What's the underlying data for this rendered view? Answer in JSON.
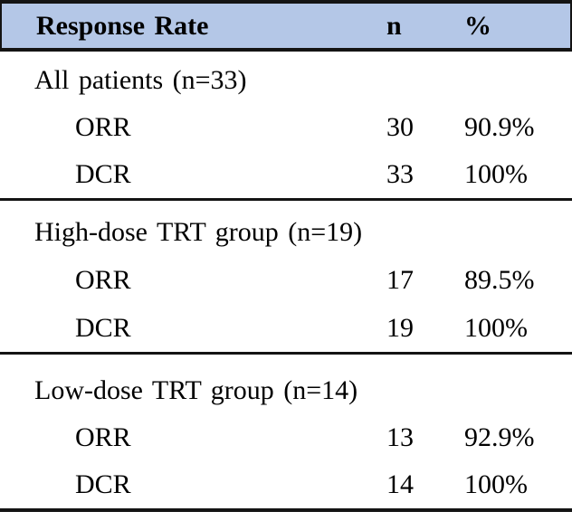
{
  "table": {
    "header": {
      "col1": "Response Rate",
      "col2": "n",
      "col3": "%"
    },
    "sections": [
      {
        "label": "All patients (n=33)",
        "rows": [
          {
            "metric": "ORR",
            "n": "30",
            "pct": "90.9%"
          },
          {
            "metric": "DCR",
            "n": "33",
            "pct": "100%"
          }
        ]
      },
      {
        "label": "High-dose TRT group (n=19)",
        "rows": [
          {
            "metric": "ORR",
            "n": "17",
            "pct": "89.5%"
          },
          {
            "metric": "DCR",
            "n": "19",
            "pct": "100%"
          }
        ]
      },
      {
        "label": "Low-dose TRT group (n=14)",
        "rows": [
          {
            "metric": "ORR",
            "n": "13",
            "pct": "92.9%"
          },
          {
            "metric": "DCR",
            "n": "14",
            "pct": "100%"
          }
        ]
      }
    ],
    "colors": {
      "header_bg": "#b4c7e7",
      "border": "#141414",
      "text": "#000000"
    }
  }
}
